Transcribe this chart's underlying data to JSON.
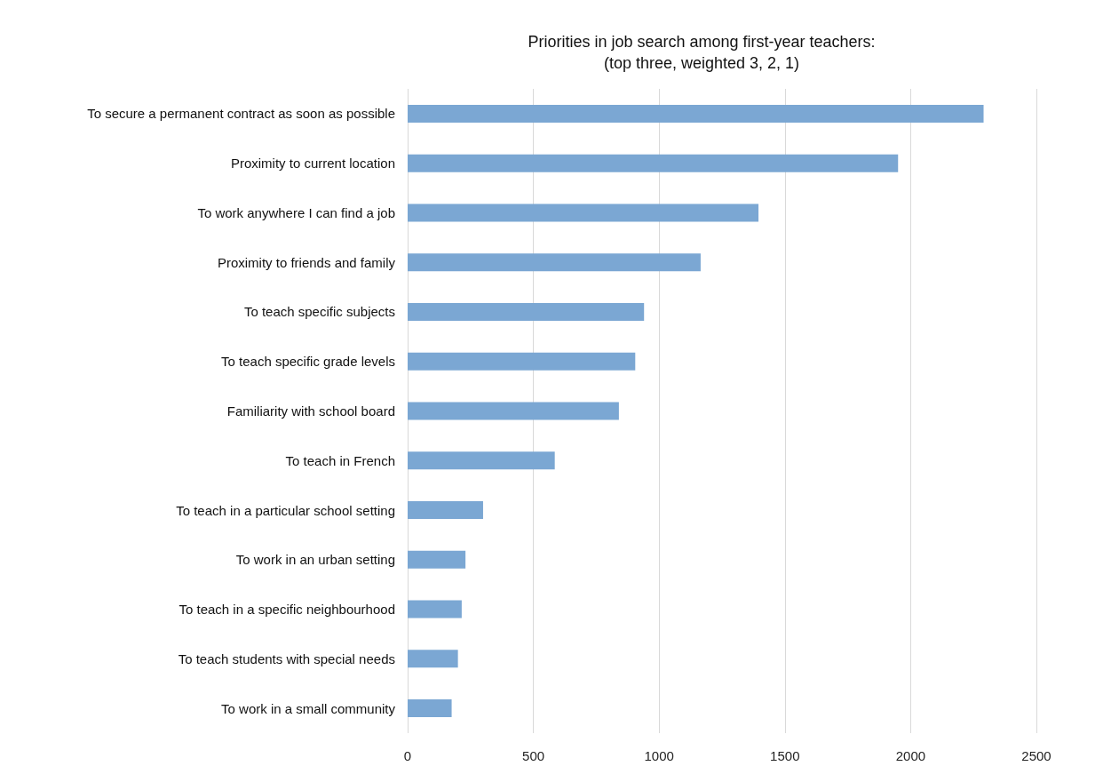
{
  "chart_data": {
    "type": "bar",
    "orientation": "horizontal",
    "title": "Priorities in job search among first-year teachers:\n(top three, weighted 3, 2, 1)",
    "categories": [
      "To secure a permanent contract as soon as possible",
      "Proximity to current location",
      "To work anywhere I can find a job",
      "Proximity to friends and family",
      "To teach specific subjects",
      "To teach specific grade levels",
      "Familiarity with school board",
      "To teach in French",
      "To teach in a particular school setting",
      "To work in an urban setting",
      "To teach in a specific neighbourhood",
      "To teach students with special needs",
      "To work in a small community"
    ],
    "values": [
      2290,
      1950,
      1395,
      1165,
      940,
      905,
      840,
      585,
      300,
      230,
      215,
      200,
      175
    ],
    "color": "#7ba7d3",
    "xlim": [
      0,
      2500
    ],
    "xticks": [
      0,
      500,
      1000,
      1500,
      2000,
      2500
    ],
    "grid": "x"
  }
}
